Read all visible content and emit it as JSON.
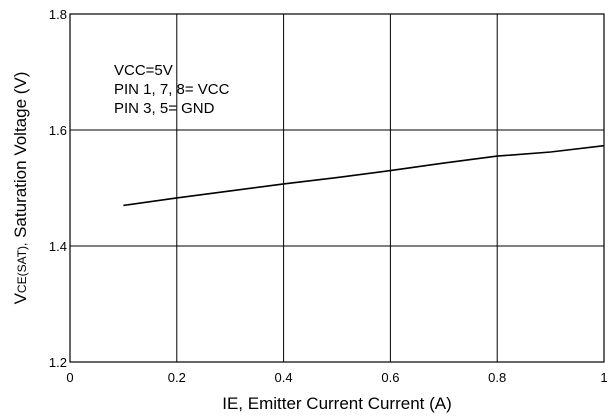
{
  "chart_data": {
    "type": "line",
    "xlabel": "IE, Emitter Current Current (A)",
    "ylabel_main": "V",
    "ylabel_sub": "CE(SAT),",
    "ylabel_rest": " Saturation Voltage (V)",
    "xlim": [
      0,
      1
    ],
    "ylim": [
      1.2,
      1.8
    ],
    "x_ticks": [
      {
        "value": 0,
        "label": "0"
      },
      {
        "value": 0.2,
        "label": "0.2"
      },
      {
        "value": 0.4,
        "label": "0.4"
      },
      {
        "value": 0.6,
        "label": "0.6"
      },
      {
        "value": 0.8,
        "label": "0.8"
      },
      {
        "value": 1,
        "label": "1"
      }
    ],
    "y_ticks": [
      {
        "value": 1.2,
        "label": "1.2"
      },
      {
        "value": 1.4,
        "label": "1.4"
      },
      {
        "value": 1.6,
        "label": "1.6"
      },
      {
        "value": 1.8,
        "label": "1.8"
      }
    ],
    "grid": true,
    "annotations": [
      "VCC=5V",
      "PIN 1, 7, 8= VCC",
      "PIN 3, 5= GND"
    ],
    "series": [
      {
        "x": [
          0.1,
          0.2,
          0.3,
          0.4,
          0.5,
          0.6,
          0.7,
          0.8,
          0.9,
          1.0
        ],
        "y": [
          1.47,
          1.483,
          1.495,
          1.507,
          1.518,
          1.53,
          1.543,
          1.555,
          1.562,
          1.573
        ]
      }
    ],
    "colors": {
      "line": "#000000",
      "grid": "#000000"
    }
  }
}
